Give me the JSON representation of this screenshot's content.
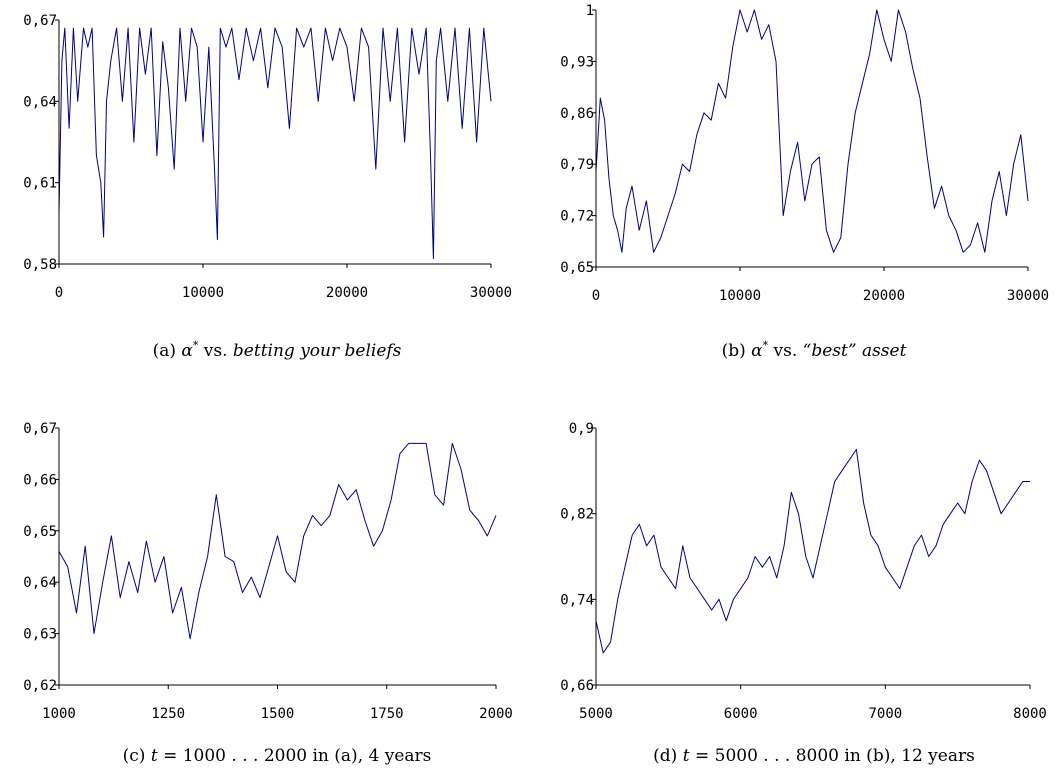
{
  "chart_data": [
    {
      "type": "line",
      "caption": {
        "label": "(a)",
        "alpha": "α",
        "star": "*",
        "vs": "vs.",
        "rest": "betting your beliefs"
      },
      "xlim": [
        0,
        30000
      ],
      "ylim": [
        0.58,
        0.67
      ],
      "x_ticks": [
        0,
        10000,
        20000,
        30000
      ],
      "x_tick_labels": [
        "0",
        "10000",
        "20000",
        "30000"
      ],
      "y_ticks": [
        0.58,
        0.61,
        0.64,
        0.67
      ],
      "y_tick_labels": [
        "0,58",
        "0,61",
        "0,64",
        "0,67"
      ],
      "series": [
        {
          "color": "#000080",
          "x": [
            0,
            200,
            400,
            700,
            1000,
            1300,
            1700,
            2000,
            2300,
            2600,
            2900,
            3100,
            3300,
            3600,
            4000,
            4400,
            4800,
            5200,
            5600,
            6000,
            6400,
            6800,
            7200,
            7600,
            8000,
            8400,
            8800,
            9200,
            9600,
            10000,
            10400,
            10800,
            11000,
            11200,
            11600,
            12000,
            12500,
            13000,
            13500,
            14000,
            14500,
            15000,
            15500,
            16000,
            16500,
            17000,
            17500,
            18000,
            18500,
            19000,
            19500,
            20000,
            20500,
            21000,
            21500,
            22000,
            22500,
            23000,
            23500,
            24000,
            24500,
            25000,
            25500,
            25800,
            26000,
            26200,
            26500,
            27000,
            27500,
            28000,
            28500,
            29000,
            29500,
            30000
          ],
          "y": [
            0.599,
            0.655,
            0.667,
            0.63,
            0.667,
            0.64,
            0.667,
            0.66,
            0.667,
            0.62,
            0.61,
            0.59,
            0.64,
            0.655,
            0.667,
            0.64,
            0.667,
            0.625,
            0.667,
            0.65,
            0.667,
            0.62,
            0.662,
            0.645,
            0.615,
            0.667,
            0.64,
            0.667,
            0.66,
            0.625,
            0.66,
            0.615,
            0.589,
            0.667,
            0.66,
            0.667,
            0.648,
            0.667,
            0.655,
            0.667,
            0.645,
            0.667,
            0.66,
            0.63,
            0.667,
            0.66,
            0.667,
            0.64,
            0.667,
            0.655,
            0.667,
            0.66,
            0.64,
            0.667,
            0.66,
            0.615,
            0.667,
            0.64,
            0.667,
            0.625,
            0.667,
            0.65,
            0.667,
            0.62,
            0.582,
            0.655,
            0.667,
            0.64,
            0.667,
            0.63,
            0.667,
            0.625,
            0.667,
            0.64
          ]
        }
      ]
    },
    {
      "type": "line",
      "caption": {
        "label": "(b)",
        "alpha": "α",
        "star": "*",
        "vs": "vs.",
        "rest": "“best” asset"
      },
      "xlim": [
        0,
        30000
      ],
      "ylim": [
        0.65,
        1.0
      ],
      "x_ticks": [
        0,
        10000,
        20000,
        30000
      ],
      "x_tick_labels": [
        "0",
        "10000",
        "20000",
        "30000"
      ],
      "y_ticks": [
        0.65,
        0.72,
        0.79,
        0.86,
        0.93,
        1.0
      ],
      "y_tick_labels": [
        "0,65",
        "0,72",
        "0,79",
        "0,86",
        "0,93",
        "1"
      ],
      "series": [
        {
          "color": "#000080",
          "x": [
            0,
            300,
            600,
            900,
            1200,
            1500,
            1800,
            2100,
            2500,
            3000,
            3500,
            4000,
            4500,
            5000,
            5500,
            6000,
            6500,
            7000,
            7500,
            8000,
            8500,
            9000,
            9500,
            10000,
            10500,
            11000,
            11500,
            12000,
            12500,
            13000,
            13500,
            14000,
            14500,
            15000,
            15500,
            16000,
            16500,
            17000,
            17500,
            18000,
            18500,
            19000,
            19500,
            20000,
            20500,
            21000,
            21500,
            22000,
            22500,
            23000,
            23500,
            24000,
            24500,
            25000,
            25500,
            26000,
            26500,
            27000,
            27500,
            28000,
            28500,
            29000,
            29500,
            30000
          ],
          "y": [
            0.78,
            0.88,
            0.85,
            0.77,
            0.72,
            0.7,
            0.67,
            0.73,
            0.76,
            0.7,
            0.74,
            0.67,
            0.69,
            0.72,
            0.75,
            0.79,
            0.78,
            0.83,
            0.86,
            0.85,
            0.9,
            0.88,
            0.95,
            1.0,
            0.97,
            1.0,
            0.96,
            0.98,
            0.93,
            0.72,
            0.78,
            0.82,
            0.74,
            0.79,
            0.8,
            0.7,
            0.67,
            0.69,
            0.79,
            0.86,
            0.9,
            0.94,
            1.0,
            0.96,
            0.93,
            1.0,
            0.97,
            0.92,
            0.88,
            0.8,
            0.73,
            0.76,
            0.72,
            0.7,
            0.67,
            0.68,
            0.71,
            0.67,
            0.74,
            0.78,
            0.72,
            0.79,
            0.83,
            0.74
          ]
        }
      ]
    },
    {
      "type": "line",
      "caption": {
        "label": "(c)",
        "t": "t",
        "eq": "=",
        "range": "1000 . . . 2000",
        "rest": "in (a), 4 years"
      },
      "xlim": [
        1000,
        2000
      ],
      "ylim": [
        0.62,
        0.67
      ],
      "x_ticks": [
        1000,
        1250,
        1500,
        1750,
        2000
      ],
      "x_tick_labels": [
        "1000",
        "1250",
        "1500",
        "1750",
        "2000"
      ],
      "y_ticks": [
        0.62,
        0.63,
        0.64,
        0.65,
        0.66,
        0.67
      ],
      "y_tick_labels": [
        "0,62",
        "0,63",
        "0,64",
        "0,65",
        "0,66",
        "0,67"
      ],
      "series": [
        {
          "color": "#000080",
          "x": [
            1000,
            1020,
            1040,
            1060,
            1080,
            1100,
            1120,
            1140,
            1160,
            1180,
            1200,
            1220,
            1240,
            1260,
            1280,
            1300,
            1320,
            1340,
            1360,
            1380,
            1400,
            1420,
            1440,
            1460,
            1480,
            1500,
            1520,
            1540,
            1560,
            1580,
            1600,
            1620,
            1640,
            1660,
            1680,
            1700,
            1720,
            1740,
            1760,
            1780,
            1800,
            1820,
            1840,
            1860,
            1880,
            1900,
            1920,
            1940,
            1960,
            1980,
            2000
          ],
          "y": [
            0.646,
            0.643,
            0.634,
            0.647,
            0.63,
            0.64,
            0.649,
            0.637,
            0.644,
            0.638,
            0.648,
            0.64,
            0.645,
            0.634,
            0.639,
            0.629,
            0.638,
            0.645,
            0.657,
            0.645,
            0.644,
            0.638,
            0.641,
            0.637,
            0.643,
            0.649,
            0.642,
            0.64,
            0.649,
            0.653,
            0.651,
            0.653,
            0.659,
            0.656,
            0.658,
            0.652,
            0.647,
            0.65,
            0.656,
            0.665,
            0.667,
            0.667,
            0.667,
            0.657,
            0.655,
            0.667,
            0.662,
            0.654,
            0.652,
            0.649,
            0.653
          ]
        }
      ]
    },
    {
      "type": "line",
      "caption": {
        "label": "(d)",
        "t": "t",
        "eq": "=",
        "range": "5000 . . . 8000",
        "rest": "in (b), 12 years"
      },
      "xlim": [
        5000,
        8000
      ],
      "ylim": [
        0.66,
        0.9
      ],
      "x_ticks": [
        5000,
        6000,
        7000,
        8000
      ],
      "x_tick_labels": [
        "5000",
        "6000",
        "7000",
        "8000"
      ],
      "y_ticks": [
        0.66,
        0.74,
        0.82,
        0.9
      ],
      "y_tick_labels": [
        "0,66",
        "0,74",
        "0,82",
        "0,9"
      ],
      "series": [
        {
          "color": "#000080",
          "x": [
            5000,
            5050,
            5100,
            5150,
            5200,
            5250,
            5300,
            5350,
            5400,
            5450,
            5500,
            5550,
            5600,
            5650,
            5700,
            5750,
            5800,
            5850,
            5900,
            5950,
            6000,
            6050,
            6100,
            6150,
            6200,
            6250,
            6300,
            6350,
            6400,
            6450,
            6500,
            6550,
            6600,
            6650,
            6700,
            6750,
            6800,
            6850,
            6900,
            6950,
            7000,
            7050,
            7100,
            7150,
            7200,
            7250,
            7300,
            7350,
            7400,
            7450,
            7500,
            7550,
            7600,
            7650,
            7700,
            7750,
            7800,
            7850,
            7900,
            7950,
            8000
          ],
          "y": [
            0.72,
            0.69,
            0.7,
            0.74,
            0.77,
            0.8,
            0.81,
            0.79,
            0.8,
            0.77,
            0.76,
            0.75,
            0.79,
            0.76,
            0.75,
            0.74,
            0.73,
            0.74,
            0.72,
            0.74,
            0.75,
            0.76,
            0.78,
            0.77,
            0.78,
            0.76,
            0.79,
            0.84,
            0.82,
            0.78,
            0.76,
            0.79,
            0.82,
            0.85,
            0.86,
            0.87,
            0.88,
            0.83,
            0.8,
            0.79,
            0.77,
            0.76,
            0.75,
            0.77,
            0.79,
            0.8,
            0.78,
            0.79,
            0.81,
            0.82,
            0.83,
            0.82,
            0.85,
            0.87,
            0.86,
            0.84,
            0.82,
            0.83,
            0.84,
            0.85,
            0.85
          ]
        }
      ]
    }
  ]
}
